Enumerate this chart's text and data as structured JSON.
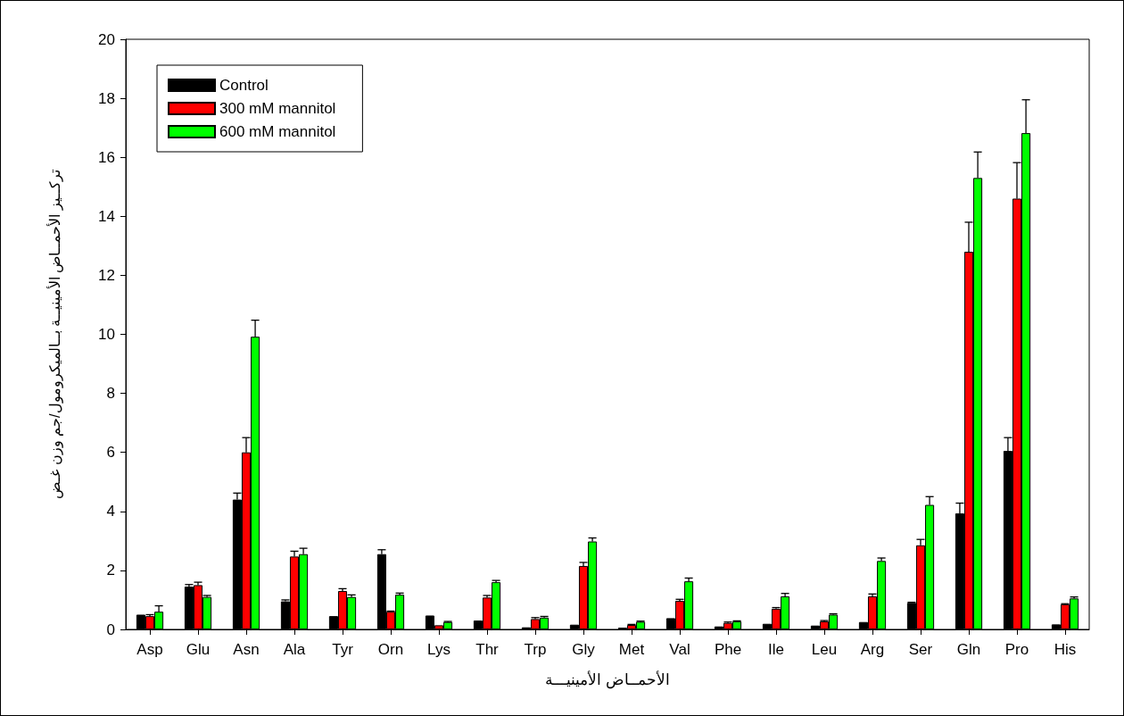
{
  "chart_data": {
    "type": "bar",
    "xlabel": "الأحمــاض الأمينيـــة",
    "ylabel": "تركــيز الأحمــاض الأمينيــة بــالميكرومول/جم وزن غـض",
    "categories": [
      "Asp",
      "Glu",
      "Asn",
      "Ala",
      "Tyr",
      "Orn",
      "Lys",
      "Thr",
      "Trp",
      "Gly",
      "Met",
      "Val",
      "Phe",
      "Ile",
      "Leu",
      "Arg",
      "Ser",
      "Gln",
      "Pro",
      "His"
    ],
    "series": [
      {
        "name": "Control",
        "color": "#000000",
        "values": [
          0.5,
          1.45,
          4.4,
          0.95,
          0.45,
          2.55,
          0.47,
          0.3,
          0.07,
          0.16,
          0.06,
          0.38,
          0.1,
          0.19,
          0.13,
          0.25,
          0.9,
          3.93,
          6.05,
          0.17
        ],
        "errors": [
          null,
          [
            1.45,
            1.52
          ],
          [
            4.4,
            4.62
          ],
          [
            0.95,
            1.0
          ],
          null,
          [
            2.55,
            2.7
          ],
          null,
          null,
          null,
          null,
          null,
          null,
          null,
          null,
          null,
          null,
          [
            0.9,
            0.92
          ],
          [
            3.93,
            4.28
          ],
          [
            6.05,
            6.5
          ],
          null
        ]
      },
      {
        "name": "300 mM mannitol",
        "color": "#ff0000",
        "values": [
          0.45,
          1.5,
          6.0,
          2.47,
          1.3,
          0.6,
          0.14,
          1.08,
          0.35,
          2.15,
          0.15,
          0.97,
          0.22,
          0.7,
          0.27,
          1.12,
          2.85,
          12.8,
          14.6,
          0.85
        ],
        "errors": [
          [
            0.45,
            0.5
          ],
          [
            1.5,
            1.6
          ],
          [
            6.0,
            6.5
          ],
          [
            2.47,
            2.65
          ],
          [
            1.3,
            1.38
          ],
          [
            0.6,
            0.62
          ],
          null,
          [
            1.08,
            1.15
          ],
          [
            0.35,
            0.4
          ],
          [
            2.15,
            2.27
          ],
          [
            0.15,
            0.17
          ],
          [
            0.97,
            1.02
          ],
          [
            0.22,
            0.25
          ],
          [
            0.7,
            0.74
          ],
          [
            0.27,
            0.3
          ],
          [
            1.12,
            1.2
          ],
          [
            2.85,
            3.05
          ],
          [
            12.8,
            13.8
          ],
          [
            14.6,
            15.82
          ],
          [
            0.85,
            0.87
          ]
        ]
      },
      {
        "name": "600 mM mannitol",
        "color": "#00ff00",
        "values": [
          0.6,
          1.1,
          9.92,
          2.55,
          1.1,
          1.18,
          0.25,
          1.6,
          0.4,
          2.98,
          0.26,
          1.63,
          0.27,
          1.12,
          0.5,
          2.32,
          4.22,
          15.3,
          16.82,
          1.05
        ],
        "errors": [
          [
            0.6,
            0.8
          ],
          [
            1.1,
            1.15
          ],
          [
            9.92,
            10.48
          ],
          [
            2.55,
            2.75
          ],
          [
            1.1,
            1.17
          ],
          [
            1.18,
            1.23
          ],
          [
            0.25,
            0.27
          ],
          [
            1.6,
            1.66
          ],
          [
            0.4,
            0.44
          ],
          [
            2.98,
            3.1
          ],
          [
            0.26,
            0.28
          ],
          [
            1.63,
            1.74
          ],
          [
            0.27,
            0.29
          ],
          [
            1.12,
            1.22
          ],
          [
            0.5,
            0.53
          ],
          [
            2.32,
            2.42
          ],
          [
            4.22,
            4.5
          ],
          [
            15.3,
            16.18
          ],
          [
            16.82,
            17.95
          ],
          [
            1.05,
            1.1
          ]
        ]
      }
    ],
    "ylim": [
      0,
      20
    ],
    "yticks": [
      0,
      2,
      4,
      6,
      8,
      10,
      12,
      14,
      16,
      18,
      20
    ],
    "grid": false,
    "legend": "top left"
  }
}
